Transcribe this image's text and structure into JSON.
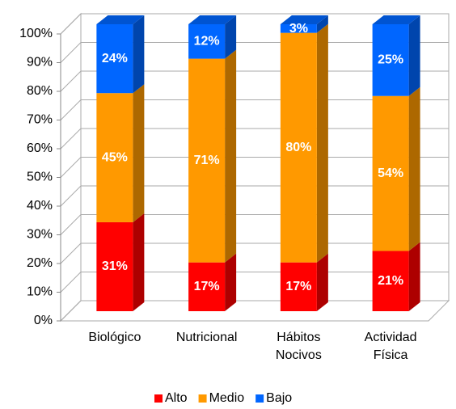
{
  "chart_data": {
    "type": "bar3d_stacked",
    "categories": [
      "Biológico",
      "Nutricional",
      "Hábitos\nNocivos",
      "Actividad\nFísica"
    ],
    "series": [
      {
        "name": "Alto",
        "color": "#ff0000",
        "values": [
          31,
          17,
          17,
          21
        ],
        "value_labels": [
          "31%",
          "17%",
          "17%",
          "21%"
        ]
      },
      {
        "name": "Medio",
        "color": "#ff9900",
        "values": [
          45,
          71,
          80,
          54
        ],
        "value_labels": [
          "45%",
          "71%",
          "80%",
          "54%"
        ]
      },
      {
        "name": "Bajo",
        "color": "#0066ff",
        "values": [
          24,
          12,
          3,
          25
        ],
        "value_labels": [
          "24%",
          "12%",
          "3%",
          "25%"
        ]
      }
    ],
    "ylim": [
      0,
      100
    ],
    "yticks": [
      {
        "value": 0,
        "label": "0%"
      },
      {
        "value": 10,
        "label": "10%"
      },
      {
        "value": 20,
        "label": "20%"
      },
      {
        "value": 30,
        "label": "30%"
      },
      {
        "value": 40,
        "label": "40%"
      },
      {
        "value": 50,
        "label": "50%"
      },
      {
        "value": 60,
        "label": "60%"
      },
      {
        "value": 70,
        "label": "70%"
      },
      {
        "value": 80,
        "label": "80%"
      },
      {
        "value": 90,
        "label": "90%"
      },
      {
        "value": 100,
        "label": "100%"
      }
    ],
    "grid": true,
    "legend": "bottom"
  }
}
